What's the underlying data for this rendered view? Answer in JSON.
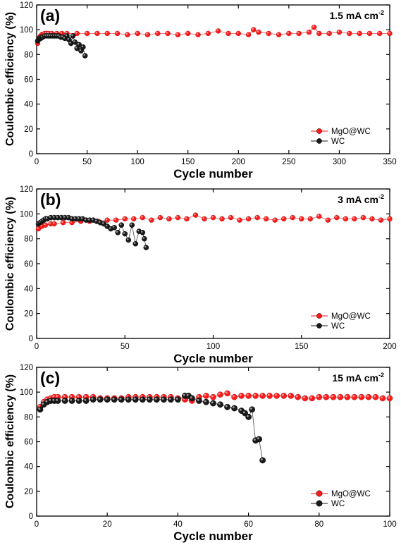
{
  "figure": {
    "colors": {
      "mgo": "#ff1a1a",
      "wc": "#1a1a1a",
      "axis": "#000000"
    }
  },
  "chart_data": [
    {
      "type": "scatter",
      "panel_label": "(a)",
      "condition": "1.5 mA cm",
      "condition_sup": "-2",
      "xlabel": "Cycle number",
      "ylabel": "Coulombic efficiency (%)",
      "xlim": [
        0,
        350
      ],
      "ylim": [
        0,
        120
      ],
      "xticks": [
        0,
        50,
        100,
        150,
        200,
        250,
        300,
        350
      ],
      "yticks": [
        0,
        20,
        40,
        60,
        80,
        100,
        120
      ],
      "legend_position": "bottom-right",
      "grid": false,
      "series": [
        {
          "name": "MgO@WC",
          "color": "#ff1a1a",
          "x": [
            1,
            2,
            3,
            4,
            5,
            6,
            7,
            8,
            10,
            12,
            15,
            20,
            25,
            30,
            40,
            50,
            60,
            70,
            80,
            90,
            100,
            110,
            120,
            130,
            140,
            150,
            160,
            170,
            180,
            190,
            200,
            210,
            215,
            220,
            230,
            240,
            250,
            260,
            270,
            275,
            280,
            290,
            300,
            310,
            320,
            330,
            340,
            350
          ],
          "y": [
            89,
            92,
            94,
            95,
            96,
            96,
            96,
            97,
            97,
            97,
            97,
            97,
            97,
            97,
            97,
            97,
            97,
            97,
            97,
            96,
            97,
            96,
            97,
            97,
            96,
            97,
            96,
            97,
            99,
            97,
            97,
            96,
            100,
            98,
            97,
            96,
            97,
            97,
            98,
            102,
            97,
            97,
            98,
            97,
            97,
            97,
            97,
            97
          ]
        },
        {
          "name": "WC",
          "color": "#1a1a1a",
          "x": [
            1,
            2,
            3,
            4,
            5,
            6,
            8,
            10,
            12,
            14,
            16,
            18,
            20,
            22,
            24,
            26,
            28,
            30,
            32,
            34,
            36,
            38,
            40,
            42,
            44,
            46,
            48
          ],
          "y": [
            91,
            92,
            93,
            93,
            94,
            94,
            95,
            95,
            95,
            95,
            95,
            95,
            95,
            95,
            94,
            94,
            93,
            95,
            92,
            89,
            95,
            90,
            85,
            88,
            83,
            86,
            79
          ]
        }
      ]
    },
    {
      "type": "scatter",
      "panel_label": "(b)",
      "condition": "3 mA cm",
      "condition_sup": "-2",
      "xlabel": "Cycle number",
      "ylabel": "Coulombic efficiency (%)",
      "xlim": [
        0,
        200
      ],
      "ylim": [
        0,
        120
      ],
      "xticks": [
        0,
        50,
        100,
        150,
        200
      ],
      "yticks": [
        0,
        20,
        40,
        60,
        80,
        100,
        120
      ],
      "legend_position": "bottom-right",
      "grid": false,
      "series": [
        {
          "name": "MgO@WC",
          "color": "#ff1a1a",
          "x": [
            1,
            3,
            5,
            8,
            10,
            15,
            20,
            25,
            30,
            35,
            40,
            45,
            50,
            55,
            60,
            65,
            70,
            75,
            80,
            85,
            90,
            95,
            100,
            105,
            110,
            115,
            120,
            125,
            130,
            135,
            140,
            145,
            150,
            155,
            160,
            165,
            170,
            175,
            180,
            185,
            190,
            195,
            200
          ],
          "y": [
            88,
            90,
            91,
            92,
            92,
            93,
            93,
            94,
            94,
            94,
            95,
            95,
            96,
            96,
            97,
            95,
            97,
            96,
            97,
            96,
            99,
            96,
            97,
            96,
            97,
            95,
            96,
            97,
            96,
            95,
            96,
            97,
            96,
            96,
            98,
            95,
            97,
            96,
            96,
            97,
            96,
            95,
            96
          ]
        },
        {
          "name": "WC",
          "color": "#1a1a1a",
          "x": [
            1,
            2,
            3,
            4,
            5,
            6,
            8,
            10,
            12,
            14,
            16,
            18,
            20,
            22,
            24,
            26,
            28,
            30,
            32,
            34,
            36,
            38,
            40,
            42,
            44,
            46,
            48,
            50,
            52,
            54,
            56,
            58,
            60,
            61,
            62
          ],
          "y": [
            92,
            93,
            94,
            95,
            96,
            96,
            97,
            97,
            97,
            97,
            97,
            97,
            96,
            96,
            96,
            96,
            95,
            95,
            95,
            94,
            93,
            92,
            90,
            88,
            89,
            85,
            91,
            84,
            79,
            91,
            76,
            86,
            85,
            80,
            73
          ]
        }
      ]
    },
    {
      "type": "scatter",
      "panel_label": "(c)",
      "condition": "15 mA cm",
      "condition_sup": "-2",
      "xlabel": "Cycle number",
      "ylabel": "Coulombic efficiency (%)",
      "xlim": [
        0,
        100
      ],
      "ylim": [
        0,
        120
      ],
      "xticks": [
        0,
        20,
        40,
        60,
        80,
        100
      ],
      "yticks": [
        0,
        20,
        40,
        60,
        80,
        100,
        120
      ],
      "legend_position": "bottom-right",
      "grid": false,
      "series": [
        {
          "name": "MgO@WC",
          "color": "#ff1a1a",
          "x": [
            1,
            2,
            3,
            4,
            5,
            6,
            8,
            10,
            12,
            14,
            16,
            18,
            20,
            22,
            24,
            26,
            28,
            30,
            32,
            34,
            36,
            38,
            40,
            42,
            44,
            46,
            48,
            50,
            52,
            54,
            56,
            58,
            60,
            62,
            64,
            66,
            68,
            70,
            72,
            74,
            76,
            78,
            80,
            82,
            84,
            86,
            88,
            90,
            92,
            94,
            96,
            98,
            100
          ],
          "y": [
            88,
            92,
            94,
            95,
            96,
            96,
            96,
            96,
            96,
            96,
            96,
            95,
            95,
            95,
            95,
            96,
            96,
            96,
            96,
            96,
            96,
            96,
            95,
            94,
            93,
            96,
            97,
            96,
            98,
            99,
            96,
            97,
            97,
            97,
            97,
            97,
            97,
            97,
            97,
            96,
            95,
            95,
            96,
            96,
            96,
            96,
            96,
            96,
            96,
            96,
            96,
            95,
            95
          ]
        },
        {
          "name": "WC",
          "color": "#1a1a1a",
          "x": [
            1,
            2,
            3,
            4,
            5,
            6,
            8,
            10,
            12,
            14,
            16,
            18,
            20,
            22,
            24,
            26,
            28,
            30,
            32,
            34,
            36,
            38,
            40,
            42,
            43,
            44,
            46,
            48,
            50,
            52,
            54,
            56,
            58,
            59,
            60,
            61,
            62,
            63,
            64
          ],
          "y": [
            86,
            90,
            92,
            93,
            93,
            93,
            93,
            93,
            93,
            93,
            94,
            94,
            94,
            94,
            94,
            94,
            94,
            94,
            94,
            94,
            94,
            94,
            94,
            97,
            97,
            95,
            93,
            92,
            91,
            90,
            88,
            87,
            85,
            83,
            80,
            86,
            61,
            62,
            45
          ]
        }
      ]
    }
  ]
}
